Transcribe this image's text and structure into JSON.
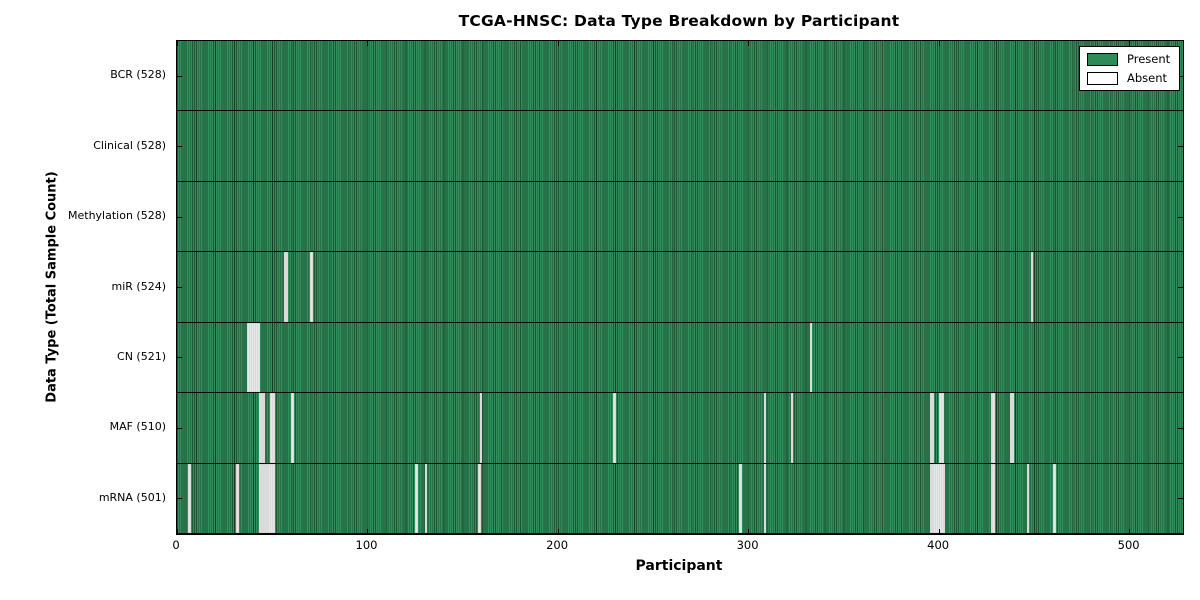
{
  "chart_data": {
    "type": "heatmap",
    "title": "TCGA-HNSC: Data Type Breakdown by Participant",
    "xlabel": "Participant",
    "ylabel": "Data Type (Total Sample Count)",
    "n_participants": 528,
    "x_ticks": [
      0,
      100,
      200,
      300,
      400,
      500
    ],
    "xlim": [
      0,
      528
    ],
    "grid": false,
    "legend": {
      "position": "upper-right",
      "entries": [
        {
          "label": "Present",
          "color": "#2E8B57"
        },
        {
          "label": "Absent",
          "color": "#FFFFFF"
        }
      ]
    },
    "colors": {
      "present": "#2E8B57",
      "absent": "#E7E7E7",
      "axis": "#000000"
    },
    "rows": [
      {
        "label": "BCR",
        "count": 528,
        "display": "BCR (528)",
        "absent_participants": []
      },
      {
        "label": "Clinical",
        "count": 528,
        "display": "Clinical (528)",
        "absent_participants": []
      },
      {
        "label": "Methylation",
        "count": 528,
        "display": "Methylation (528)",
        "absent_participants": []
      },
      {
        "label": "miR",
        "count": 524,
        "display": "miR (524)",
        "absent_participants": [
          56,
          57,
          70,
          448
        ]
      },
      {
        "label": "CN",
        "count": 521,
        "display": "CN (521)",
        "absent_participants": [
          37,
          38,
          39,
          40,
          41,
          42,
          332
        ]
      },
      {
        "label": "MAF",
        "count": 510,
        "display": "MAF (510)",
        "absent_participants": [
          43,
          44,
          45,
          49,
          50,
          60,
          159,
          229,
          308,
          322,
          395,
          396,
          400,
          401,
          427,
          428,
          437,
          438
        ]
      },
      {
        "label": "mRNA",
        "count": 501,
        "display": "mRNA (501)",
        "absent_participants": [
          6,
          31,
          43,
          44,
          45,
          46,
          47,
          48,
          49,
          50,
          125,
          130,
          158,
          295,
          308,
          395,
          396,
          397,
          398,
          399,
          400,
          401,
          402,
          427,
          428,
          446,
          460
        ]
      }
    ]
  }
}
